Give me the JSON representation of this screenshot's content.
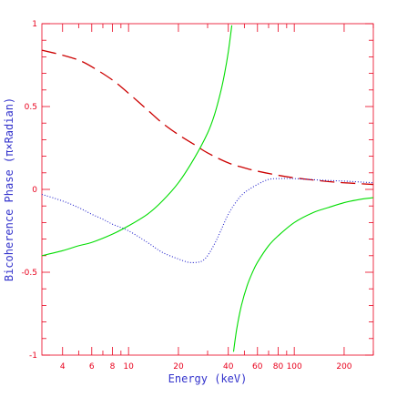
{
  "chart_data": {
    "type": "line",
    "title": "",
    "xlabel": "Energy (keV)",
    "ylabel": "Bicoherence Phase (π×Radian)",
    "xscale": "log",
    "xlim": [
      3,
      300
    ],
    "ylim": [
      -1,
      1
    ],
    "grid": false,
    "x_tick_labels": [
      {
        "value": 4,
        "label": "4"
      },
      {
        "value": 6,
        "label": "6"
      },
      {
        "value": 8,
        "label": "8"
      },
      {
        "value": 10,
        "label": "10"
      },
      {
        "value": 20,
        "label": "20"
      },
      {
        "value": 40,
        "label": "40"
      },
      {
        "value": 60,
        "label": "60"
      },
      {
        "value": 80,
        "label": "80"
      },
      {
        "value": 100,
        "label": "100"
      },
      {
        "value": 200,
        "label": "200"
      }
    ],
    "y_tick_labels": [
      {
        "value": 1,
        "label": "1"
      },
      {
        "value": 0.5,
        "label": "0.5"
      },
      {
        "value": 0,
        "label": "0"
      },
      {
        "value": -0.5,
        "label": "-0.5"
      },
      {
        "value": -1,
        "label": "-1"
      }
    ],
    "series": [
      {
        "style": "dashed",
        "color": "#cc0000",
        "x": [
          3,
          4,
          5,
          6,
          8,
          10,
          13,
          16,
          20,
          25,
          30,
          40,
          50,
          60,
          80,
          100,
          150,
          200,
          300
        ],
        "y": [
          0.84,
          0.81,
          0.78,
          0.74,
          0.66,
          0.58,
          0.48,
          0.4,
          0.33,
          0.27,
          0.22,
          0.16,
          0.13,
          0.11,
          0.085,
          0.07,
          0.05,
          0.04,
          0.03
        ]
      },
      {
        "style": "dotted",
        "color": "#2222cc",
        "x": [
          3,
          4,
          5,
          6,
          7,
          8,
          10,
          13,
          16,
          20,
          23,
          26,
          28,
          30,
          33,
          36,
          40,
          45,
          50,
          60,
          70,
          80,
          100,
          150,
          200,
          300
        ],
        "y": [
          -0.03,
          -0.07,
          -0.11,
          -0.15,
          -0.18,
          -0.21,
          -0.25,
          -0.32,
          -0.38,
          -0.42,
          -0.44,
          -0.44,
          -0.43,
          -0.4,
          -0.33,
          -0.25,
          -0.15,
          -0.07,
          -0.02,
          0.03,
          0.06,
          0.065,
          0.065,
          0.055,
          0.05,
          0.04
        ]
      },
      {
        "style": "solid",
        "color": "#00dd00",
        "x": [
          3,
          4,
          5,
          6,
          8,
          10,
          13,
          16,
          20,
          25,
          30,
          33,
          36,
          38,
          40,
          42
        ],
        "y": [
          -0.4,
          -0.37,
          -0.34,
          -0.32,
          -0.27,
          -0.22,
          -0.15,
          -0.07,
          0.04,
          0.19,
          0.34,
          0.45,
          0.59,
          0.7,
          0.83,
          0.99
        ]
      },
      {
        "style": "solid",
        "color": "#00dd00",
        "x": [
          43,
          45,
          48,
          52,
          56,
          60,
          70,
          80,
          100,
          130,
          160,
          200,
          250,
          300
        ],
        "y": [
          -0.98,
          -0.84,
          -0.7,
          -0.58,
          -0.5,
          -0.44,
          -0.34,
          -0.28,
          -0.2,
          -0.14,
          -0.11,
          -0.08,
          -0.06,
          -0.05
        ]
      }
    ]
  }
}
